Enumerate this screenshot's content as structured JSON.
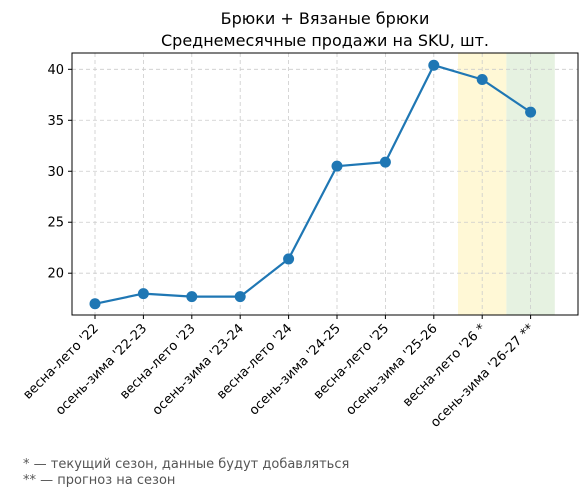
{
  "chart_data": {
    "type": "line",
    "title_line1": "Брюки + Вязаные брюки",
    "title_line2": "Среднемесячные продажи на SKU, шт.",
    "xlabel": "",
    "ylabel": "",
    "categories": [
      "весна-лето '22",
      "осень-зима '22-23",
      "весна-лето '23",
      "осень-зима '23-24",
      "весна-лето '24",
      "осень-зима '24-25",
      "весна-лето '25",
      "осень-зима '25-26",
      "весна-лето '26 *",
      "осень-зима '26-27 **"
    ],
    "values": [
      17.0,
      18.0,
      17.7,
      17.7,
      21.4,
      30.5,
      30.9,
      40.4,
      39.0,
      35.8
    ],
    "ylim": [
      15.9,
      41.6
    ],
    "yticks": [
      20,
      25,
      30,
      35,
      40
    ],
    "grid": true,
    "line_color": "#1f77b4",
    "highlights": [
      {
        "category_index": 8,
        "color": "#fff8d6"
      },
      {
        "category_index": 9,
        "color": "#e6f2e1"
      }
    ]
  },
  "notes": {
    "current": "* — текущий сезон, данные будут добавляться",
    "forecast": "** — прогноз на сезон"
  }
}
